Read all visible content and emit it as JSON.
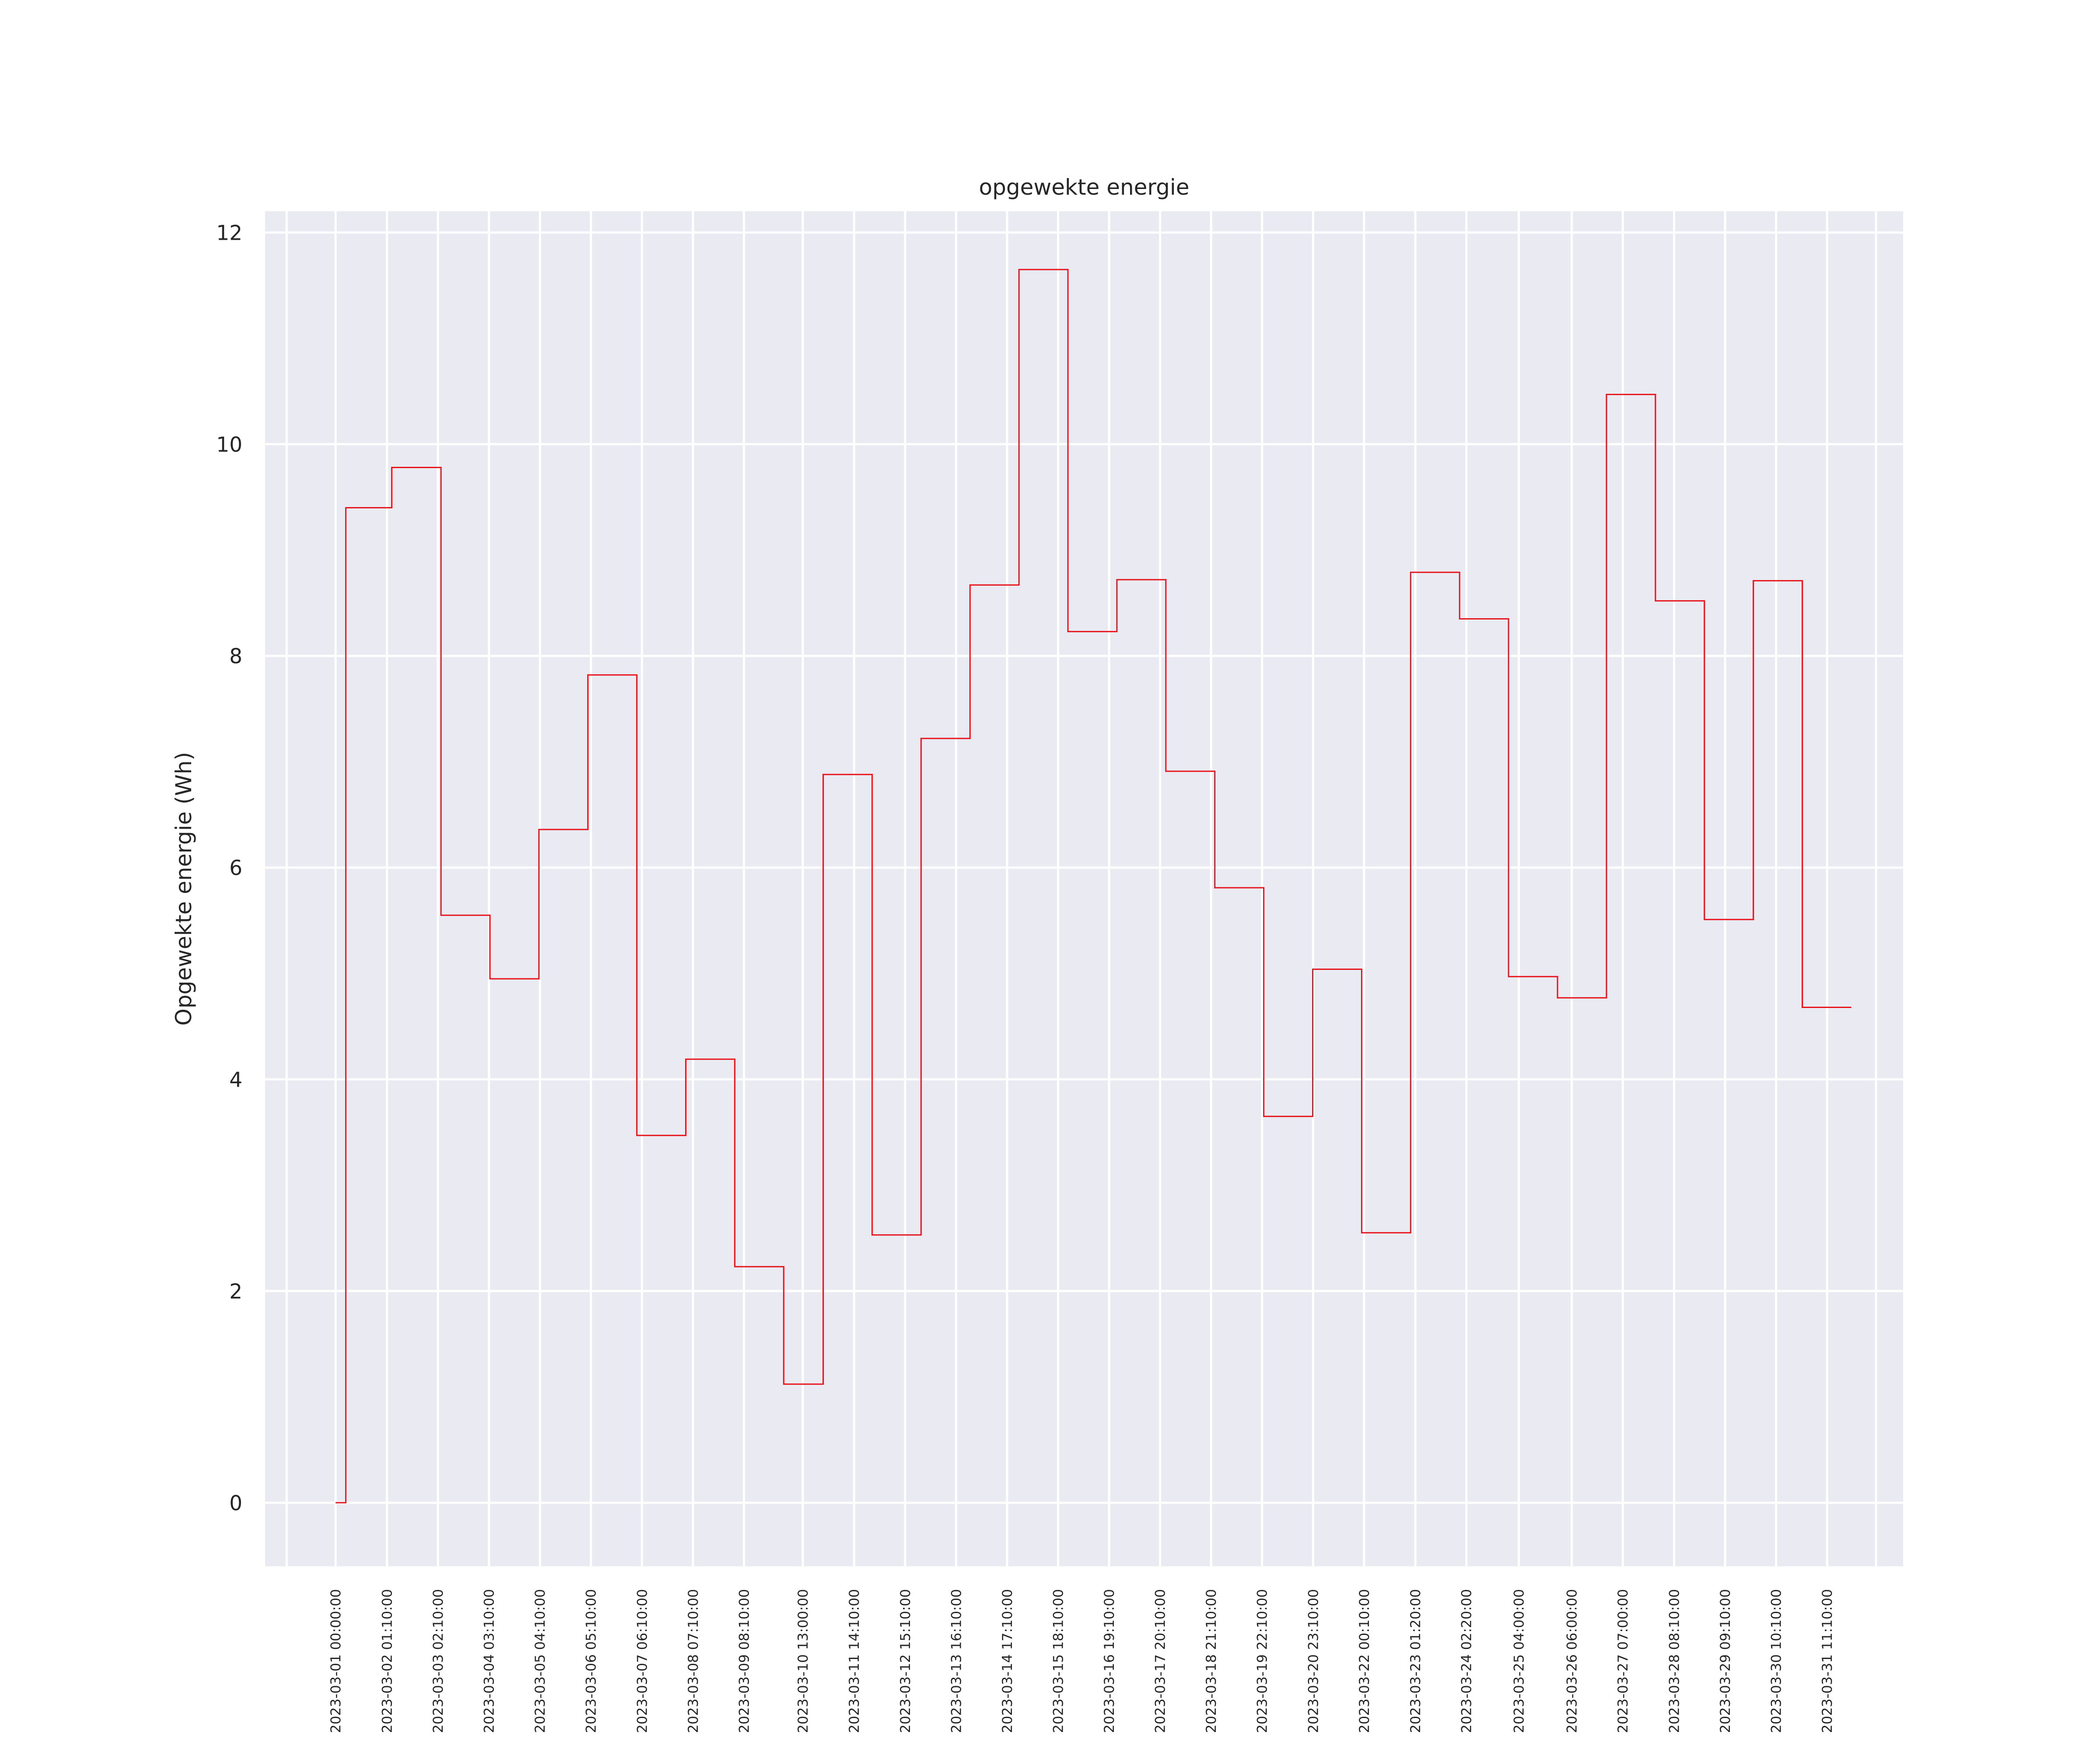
{
  "chart_data": {
    "type": "line",
    "style": "step-post",
    "title": "opgewekte energie",
    "xlabel": "",
    "ylabel": "Opgewekte energie (Wh)",
    "ylim": [
      -0.6,
      12.2
    ],
    "y_ticks": [
      0,
      2,
      4,
      6,
      8,
      10,
      12
    ],
    "grid": true,
    "line_color": "#e8141c",
    "background_color": "#eaeaf2",
    "grid_color": "#ffffff",
    "x_tick_labels": [
      "2023-03-01 00:00:00",
      "2023-03-02 01:10:00",
      "2023-03-03 02:10:00",
      "2023-03-04 03:10:00",
      "2023-03-05 04:10:00",
      "2023-03-06 05:10:00",
      "2023-03-07 06:10:00",
      "2023-03-08 07:10:00",
      "2023-03-09 08:10:00",
      "2023-03-10 13:00:00",
      "2023-03-11 14:10:00",
      "2023-03-12 15:10:00",
      "2023-03-13 16:10:00",
      "2023-03-14 17:10:00",
      "2023-03-15 18:10:00",
      "2023-03-16 19:10:00",
      "2023-03-17 20:10:00",
      "2023-03-18 21:10:00",
      "2023-03-19 22:10:00",
      "2023-03-20 23:10:00",
      "2023-03-22 00:10:00",
      "2023-03-23 01:20:00",
      "2023-03-24 02:20:00",
      "2023-03-25 04:00:00",
      "2023-03-26 06:00:00",
      "2023-03-27 07:00:00",
      "2023-03-28 08:10:00",
      "2023-03-29 09:10:00",
      "2023-03-30 10:10:00",
      "2023-03-31 11:10:00"
    ],
    "series": [
      {
        "x": [
          "2023-03-01 00:00:00",
          "2023-03-01 05:00:00",
          "2023-03-02 03:30:00",
          "2023-03-03 03:40:00",
          "2023-03-04 03:40:00",
          "2023-03-05 03:40:00",
          "2023-03-06 03:40:00",
          "2023-03-07 03:40:00",
          "2023-03-08 03:40:00",
          "2023-03-09 03:40:00",
          "2023-03-10 03:40:00",
          "2023-03-10 23:00:00",
          "2023-03-11 23:00:00",
          "2023-03-12 23:00:00",
          "2023-03-13 23:00:00",
          "2023-03-14 23:00:00",
          "2023-03-15 23:00:00",
          "2023-03-16 23:00:00",
          "2023-03-17 23:00:00",
          "2023-03-18 23:00:00",
          "2023-03-19 23:00:00",
          "2023-03-20 23:00:00",
          "2023-03-21 23:00:00",
          "2023-03-22 23:00:00",
          "2023-03-23 23:00:00",
          "2023-03-24 23:00:00",
          "2023-03-25 23:00:00",
          "2023-03-26 23:00:00",
          "2023-03-27 23:00:00",
          "2023-03-28 23:00:00",
          "2023-03-29 23:00:00",
          "2023-03-30 23:00:00"
        ],
        "y": [
          0.0,
          9.4,
          9.78,
          5.55,
          4.95,
          6.36,
          7.82,
          3.47,
          4.19,
          2.23,
          1.12,
          6.88,
          2.53,
          7.22,
          8.67,
          11.65,
          8.23,
          8.72,
          6.91,
          5.81,
          3.65,
          5.04,
          2.55,
          8.79,
          8.35,
          4.97,
          4.77,
          10.47,
          8.52,
          5.51,
          8.71,
          4.68
        ],
        "x_end": "2023-03-31 23:00:00"
      }
    ]
  }
}
